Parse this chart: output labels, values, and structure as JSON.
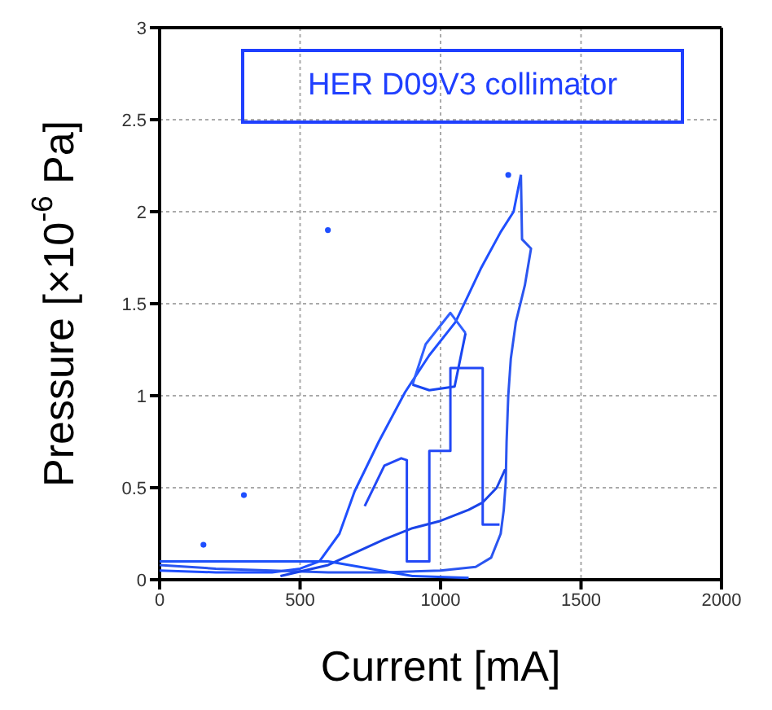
{
  "chart_data": {
    "type": "line",
    "xlabel": "Current [mA]",
    "ylabel": "Pressure [×10$^{-6}$ Pa]",
    "annotations": [
      "HER D09V3 collimator"
    ],
    "xlim": [
      0,
      2000
    ],
    "xticks": [
      0,
      500,
      1000,
      1500,
      2000
    ],
    "ylim": [
      0,
      3
    ],
    "yticks": [
      0,
      0.5,
      1,
      1.5,
      2,
      2.5,
      3
    ],
    "grid": true,
    "line_style": "solid",
    "series": [
      {
        "color": "#1f4fff",
        "x": [
          0,
          200,
          400,
          500,
          569,
          640,
          694,
          780,
          874,
          960,
          1053,
          1100,
          1143,
          1214,
          1260,
          1286
        ],
        "values": [
          0.05,
          0.04,
          0.04,
          0.06,
          0.1,
          0.25,
          0.48,
          0.75,
          1.02,
          1.22,
          1.4,
          1.55,
          1.69,
          1.89,
          2.0,
          2.2
        ]
      },
      {
        "color": "#2a55f0",
        "x": [
          1286,
          1290,
          1322,
          1300,
          1268,
          1250,
          1241,
          1235,
          1232,
          1225,
          1214,
          1180,
          1125,
          1000,
          800,
          600,
          400,
          200,
          0
        ],
        "values": [
          2.2,
          1.85,
          1.8,
          1.6,
          1.4,
          1.2,
          1.0,
          0.75,
          0.53,
          0.38,
          0.25,
          0.12,
          0.07,
          0.05,
          0.04,
          0.04,
          0.05,
          0.06,
          0.08
        ]
      },
      {
        "color": "#1a44e8",
        "x": [
          430,
          600,
          700,
          800,
          900,
          1000,
          1050,
          1100,
          1150,
          1200,
          1230
        ],
        "values": [
          0.02,
          0.08,
          0.15,
          0.22,
          0.28,
          0.32,
          0.35,
          0.38,
          0.42,
          0.5,
          0.6
        ]
      },
      {
        "color": "#3060ff",
        "x": [
          900,
          947,
          1035,
          1089
        ],
        "values": [
          1.06,
          1.28,
          1.45,
          1.34
        ]
      },
      {
        "color": "#1846f2",
        "x": [
          900,
          960,
          1050,
          1089
        ],
        "values": [
          1.06,
          1.03,
          1.05,
          1.34
        ]
      },
      {
        "color": "#2248f6",
        "x": [
          730,
          800,
          860,
          880,
          880,
          960,
          960,
          1035,
          1035,
          1150,
          1150,
          1210
        ],
        "values": [
          0.4,
          0.62,
          0.66,
          0.65,
          0.1,
          0.1,
          0.7,
          0.7,
          1.15,
          1.15,
          0.3,
          0.3
        ]
      },
      {
        "color": "#1c50fa",
        "x": [
          0,
          300,
          600,
          900,
          1100
        ],
        "values": [
          0.1,
          0.1,
          0.1,
          0.02,
          0.01
        ]
      },
      {
        "type": "scatter",
        "color": "#1f4fff",
        "x": [
          599,
          300,
          156,
          1241
        ],
        "values": [
          1.9,
          0.46,
          0.19,
          2.2
        ]
      }
    ]
  }
}
